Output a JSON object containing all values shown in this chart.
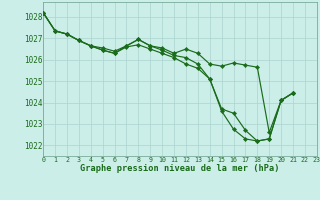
{
  "xlabel": "Graphe pression niveau de la mer (hPa)",
  "background_color": "#cceee8",
  "line_color": "#1a6b1a",
  "grid_color": "#aad4ce",
  "ylim": [
    1021.5,
    1028.7
  ],
  "xlim": [
    0,
    23
  ],
  "yticks": [
    1022,
    1023,
    1024,
    1025,
    1026,
    1027,
    1028
  ],
  "xticks": [
    0,
    1,
    2,
    3,
    4,
    5,
    6,
    7,
    8,
    9,
    10,
    11,
    12,
    13,
    14,
    15,
    16,
    17,
    18,
    19,
    20,
    21,
    22,
    23
  ],
  "series1_x": [
    0,
    1,
    2,
    3,
    4,
    5,
    6,
    7,
    8,
    9,
    10,
    11,
    12,
    13,
    14,
    15,
    16,
    17,
    18,
    19,
    20,
    21
  ],
  "series1_y": [
    1028.2,
    1027.35,
    1027.2,
    1026.9,
    1026.65,
    1026.55,
    1026.4,
    1026.65,
    1026.95,
    1026.65,
    1026.55,
    1026.3,
    1026.5,
    1026.3,
    1025.8,
    1025.7,
    1025.85,
    1025.75,
    1025.65,
    1022.6,
    1024.1,
    1024.45
  ],
  "series2_x": [
    0,
    1,
    2,
    3,
    4,
    5,
    6,
    7,
    8,
    9,
    10,
    11,
    12,
    13,
    14,
    15,
    16,
    17,
    18,
    19,
    20,
    21
  ],
  "series2_y": [
    1028.2,
    1027.35,
    1027.2,
    1026.9,
    1026.65,
    1026.45,
    1026.3,
    1026.65,
    1026.95,
    1026.65,
    1026.45,
    1026.2,
    1026.1,
    1025.8,
    1025.1,
    1023.6,
    1022.75,
    1022.3,
    1022.2,
    1022.3,
    1024.1,
    1024.45
  ],
  "series3_x": [
    0,
    1,
    2,
    3,
    4,
    5,
    6,
    7,
    8,
    9,
    10,
    11,
    12,
    13,
    14,
    15,
    16,
    17,
    18,
    19,
    20,
    21
  ],
  "series3_y": [
    1028.2,
    1027.35,
    1027.2,
    1026.9,
    1026.65,
    1026.45,
    1026.3,
    1026.6,
    1026.7,
    1026.5,
    1026.3,
    1026.1,
    1025.8,
    1025.6,
    1025.1,
    1023.7,
    1023.5,
    1022.7,
    1022.2,
    1022.3,
    1024.1,
    1024.45
  ],
  "ytick_fontsize": 5.5,
  "xtick_fontsize": 4.8,
  "xlabel_fontsize": 6.2,
  "linewidth": 0.85,
  "markersize": 2.2
}
